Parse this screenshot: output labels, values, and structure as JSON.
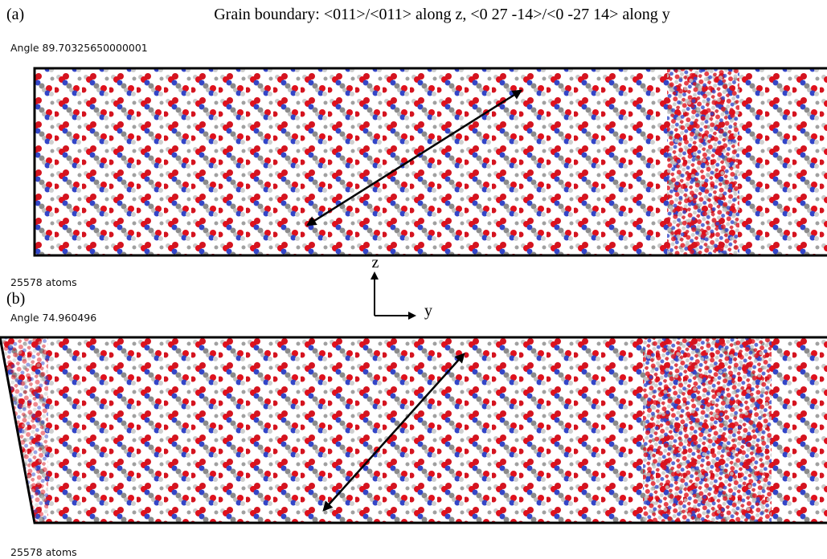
{
  "title": "Grain boundary: <011>/<011> along z, <0 27 -14>/<0 -27 14> along y",
  "panels": [
    {
      "label": "(a)",
      "angle": "Angle 89.70325650000001",
      "atoms": "25578 atoms"
    },
    {
      "label": "(b)",
      "angle": "Angle 74.960496",
      "atoms": "25578 atoms"
    }
  ],
  "axes": {
    "z": "z",
    "y": "y"
  }
}
